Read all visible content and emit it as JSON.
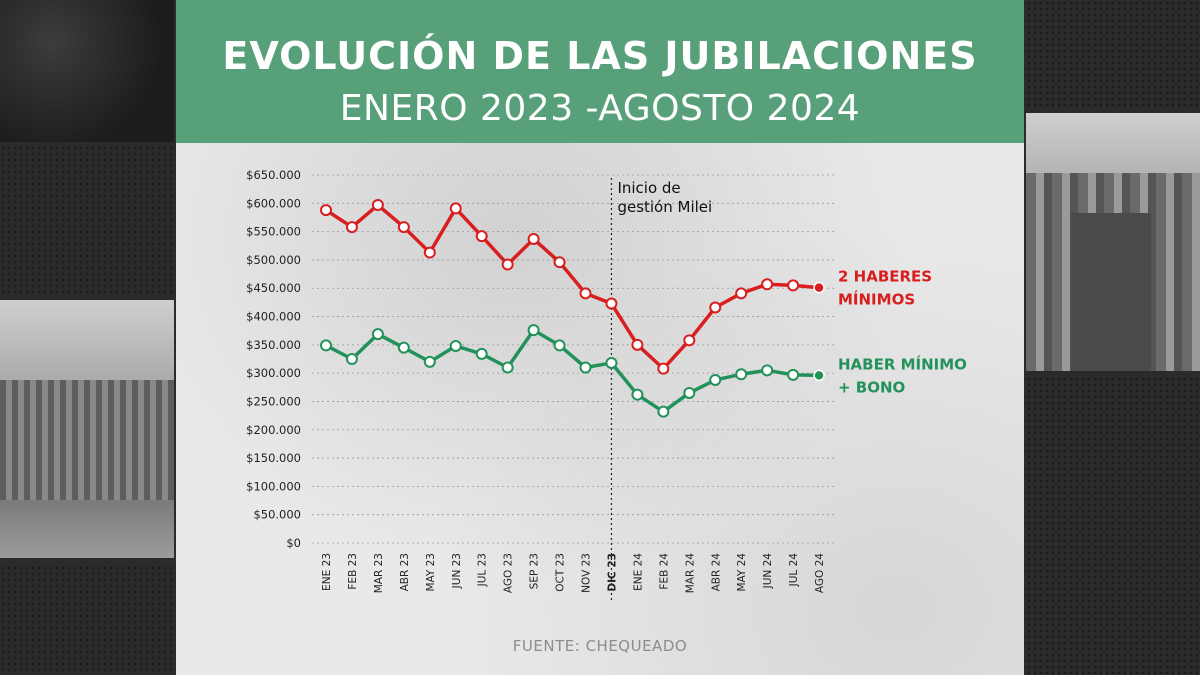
{
  "header": {
    "title": "EVOLUCIÓN DE LAS JUBILACIONES",
    "subtitle": "ENERO 2023 -AGOSTO 2024"
  },
  "source": "FUENTE: CHEQUEADO",
  "colors": {
    "header_bg": "#57a07a",
    "red_series": "#d81e1e",
    "green_series": "#23925a"
  },
  "chart_data": {
    "type": "line",
    "title": "EVOLUCIÓN DE LAS JUBILACIONES",
    "subtitle": "ENERO 2023 -AGOSTO 2024",
    "xlabel": "",
    "ylabel": "",
    "ylim": [
      0,
      650000
    ],
    "grid": true,
    "categories": [
      "ENE 23",
      "FEB 23",
      "MAR 23",
      "ABR 23",
      "MAY 23",
      "JUN 23",
      "JUL 23",
      "AGO 23",
      "SEP 23",
      "OCT 23",
      "NOV 23",
      "DIC 23",
      "ENE 24",
      "FEB 24",
      "MAR 24",
      "ABR 24",
      "MAY 24",
      "JUN 24",
      "JUL 24",
      "AGO 24"
    ],
    "highlight_category": "DIC 23",
    "y_ticks": [
      {
        "value": 650000,
        "label": "$650.000"
      },
      {
        "value": 600000,
        "label": "$600.000"
      },
      {
        "value": 550000,
        "label": "$550.000"
      },
      {
        "value": 500000,
        "label": "$500.000"
      },
      {
        "value": 450000,
        "label": "$450.000"
      },
      {
        "value": 400000,
        "label": "$400.000"
      },
      {
        "value": 350000,
        "label": "$350.000"
      },
      {
        "value": 300000,
        "label": "$300.000"
      },
      {
        "value": 250000,
        "label": "$250.000"
      },
      {
        "value": 200000,
        "label": "$200.000"
      },
      {
        "value": 150000,
        "label": "$150.000"
      },
      {
        "value": 100000,
        "label": "$100.000"
      },
      {
        "value": 50000,
        "label": "$50.000"
      },
      {
        "value": 0,
        "label": "$0"
      }
    ],
    "annotation": {
      "category": "DIC 23",
      "lines": [
        "Inicio de",
        "gestión Milei"
      ]
    },
    "series": [
      {
        "name": "2 HABERES MÍNIMOS",
        "label_lines": [
          "2 HABERES",
          "MÍNIMOS"
        ],
        "color": "#d81e1e",
        "values": [
          588000,
          558000,
          597000,
          558000,
          513000,
          591000,
          542000,
          492000,
          537000,
          496000,
          441000,
          423000,
          350000,
          308000,
          358000,
          416000,
          441000,
          457000,
          455000,
          451000
        ]
      },
      {
        "name": "HABER MÍNIMO + BONO",
        "label_lines": [
          "HABER MÍNIMO",
          "+ BONO"
        ],
        "color": "#23925a",
        "values": [
          349000,
          325000,
          369000,
          345000,
          320000,
          348000,
          334000,
          310000,
          376000,
          349000,
          310000,
          318000,
          262000,
          232000,
          265000,
          288000,
          298000,
          305000,
          297000,
          296000
        ]
      }
    ]
  }
}
